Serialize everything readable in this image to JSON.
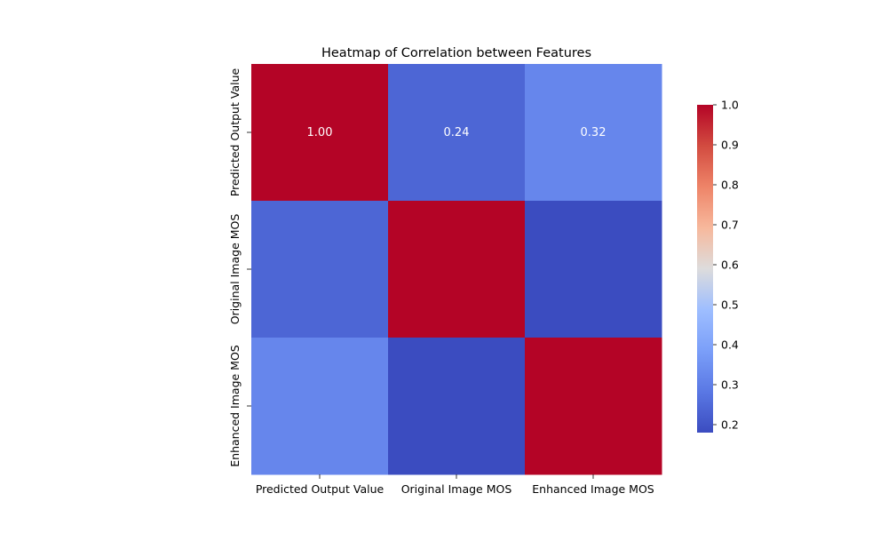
{
  "chart_data": {
    "type": "heatmap",
    "title": "Heatmap of Correlation between Features",
    "x_categories": [
      "Predicted Output Value",
      "Original Image MOS",
      "Enhanced Image MOS"
    ],
    "y_categories": [
      "Predicted Output Value",
      "Original Image MOS",
      "Enhanced Image MOS"
    ],
    "values": [
      [
        1.0,
        0.24,
        0.32
      ],
      [
        0.24,
        1.0,
        0.18
      ],
      [
        0.32,
        0.18,
        1.0
      ]
    ],
    "annotations": [
      [
        "1.00",
        "0.24",
        "0.32"
      ],
      [
        "",
        "",
        ""
      ],
      [
        "",
        "",
        ""
      ]
    ],
    "colormap": "coolwarm",
    "colorbar": {
      "vmin": 0.18,
      "vmax": 1.0,
      "ticks": [
        0.2,
        0.3,
        0.4,
        0.5,
        0.6,
        0.7,
        0.8,
        0.9,
        1.0
      ],
      "tick_labels": [
        "0.2",
        "0.3",
        "0.4",
        "0.5",
        "0.6",
        "0.7",
        "0.8",
        "0.9",
        "1.0"
      ]
    }
  }
}
